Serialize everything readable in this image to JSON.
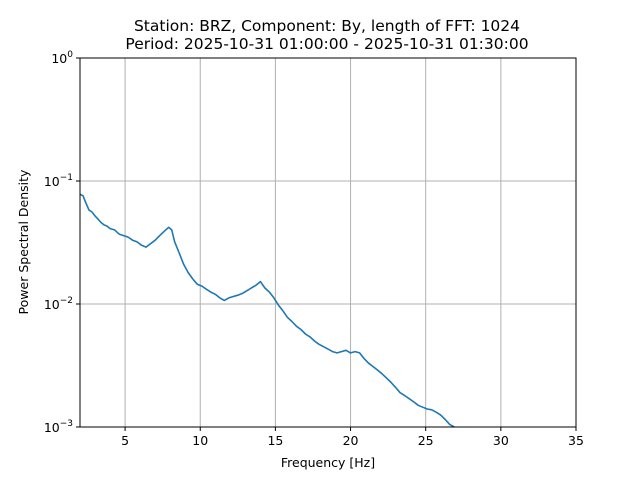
{
  "chart_data": {
    "type": "line",
    "title": "Station: BRZ, Component: By, length of FFT: 1024",
    "subtitle": "Period: 2025-10-31 01:00:00 - 2025-10-31 01:30:00",
    "xlabel": "Frequency [Hz]",
    "ylabel": "Power Spectral Density",
    "xlim": [
      2,
      35
    ],
    "ylim": [
      0.001,
      1
    ],
    "yscale": "log",
    "grid": true,
    "x_ticks": [
      5,
      10,
      15,
      20,
      25,
      30,
      35
    ],
    "x_tick_labels": [
      "5",
      "10",
      "15",
      "20",
      "25",
      "30",
      "35"
    ],
    "y_ticks": [
      0.001,
      0.01,
      0.1,
      1
    ],
    "y_tick_labels": [
      {
        "base": "10",
        "exp": "−3"
      },
      {
        "base": "10",
        "exp": "−2"
      },
      {
        "base": "10",
        "exp": "−1"
      },
      {
        "base": "10",
        "exp": "0"
      }
    ],
    "line_color": "#1f77b4",
    "grid_color": "#b0b0b0",
    "series": [
      {
        "x": [
          2.0,
          2.2,
          2.4,
          2.6,
          2.8,
          3.0,
          3.2,
          3.4,
          3.6,
          3.8,
          4.0,
          4.3,
          4.6,
          4.9,
          5.2,
          5.5,
          5.8,
          6.1,
          6.4,
          6.7,
          7.0,
          7.3,
          7.6,
          7.9,
          8.1,
          8.3,
          8.6,
          8.9,
          9.2,
          9.5,
          9.8,
          10.1,
          10.4,
          10.7,
          11.0,
          11.3,
          11.6,
          11.9,
          12.2,
          12.5,
          12.8,
          13.1,
          13.4,
          13.7,
          14.0,
          14.3,
          14.6,
          14.9,
          15.2,
          15.5,
          15.8,
          16.1,
          16.4,
          16.7,
          17.0,
          17.3,
          17.6,
          17.9,
          18.2,
          18.5,
          18.8,
          19.1,
          19.4,
          19.7,
          20.0,
          20.3,
          20.6,
          20.9,
          21.2,
          21.5,
          21.8,
          22.1,
          22.4,
          22.7,
          23.0,
          23.3,
          23.6,
          23.9,
          24.2,
          24.5,
          24.8,
          25.1,
          25.4,
          25.7,
          26.0,
          26.3,
          26.6,
          26.9
        ],
        "values": [
          0.078,
          0.076,
          0.066,
          0.058,
          0.056,
          0.052,
          0.049,
          0.046,
          0.044,
          0.043,
          0.041,
          0.04,
          0.037,
          0.036,
          0.035,
          0.033,
          0.032,
          0.03,
          0.029,
          0.031,
          0.033,
          0.036,
          0.039,
          0.042,
          0.04,
          0.032,
          0.026,
          0.021,
          0.018,
          0.016,
          0.0145,
          0.014,
          0.0132,
          0.0125,
          0.012,
          0.0112,
          0.0107,
          0.0112,
          0.0115,
          0.0118,
          0.0122,
          0.0128,
          0.0135,
          0.0142,
          0.0152,
          0.0135,
          0.0125,
          0.0112,
          0.0098,
          0.0088,
          0.0078,
          0.0072,
          0.0066,
          0.0062,
          0.0057,
          0.0054,
          0.005,
          0.0047,
          0.0045,
          0.0043,
          0.0041,
          0.004,
          0.0041,
          0.0042,
          0.004,
          0.0041,
          0.004,
          0.0036,
          0.0033,
          0.0031,
          0.0029,
          0.0027,
          0.0025,
          0.0023,
          0.0021,
          0.0019,
          0.0018,
          0.0017,
          0.0016,
          0.0015,
          0.00145,
          0.0014,
          0.00138,
          0.00132,
          0.00125,
          0.00115,
          0.00105,
          0.001
        ]
      }
    ]
  }
}
